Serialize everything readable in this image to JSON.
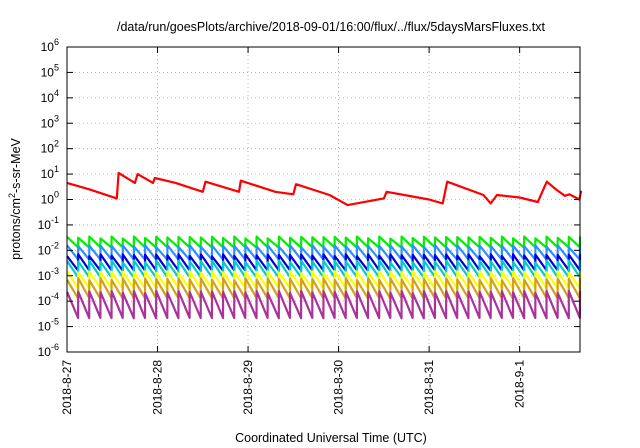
{
  "chart_data": {
    "type": "line",
    "title": "/data/run/goesPlots/archive/2018-09-01/16:00/flux/../flux/5daysMarsFluxes.txt",
    "xlabel": "Coordinated Universal Time (UTC)",
    "ylabel": {
      "base": "protons/cm",
      "sup": "2",
      "rest": "-s-sr-MeV"
    },
    "y_scale": "log",
    "ylim": [
      1e-06,
      1000000.0
    ],
    "xlim": [
      "2018-08-27",
      "2018-09-01T16:00"
    ],
    "x_ticks": [
      "2018-8-27",
      "2018-8-28",
      "2018-8-29",
      "2018-8-30",
      "2018-8-31",
      "2018-9-1"
    ],
    "y_ticks": [
      {
        "base": "10",
        "exp": "6"
      },
      {
        "base": "10",
        "exp": "5"
      },
      {
        "base": "10",
        "exp": "4"
      },
      {
        "base": "10",
        "exp": "3"
      },
      {
        "base": "10",
        "exp": "2"
      },
      {
        "base": "10",
        "exp": "1"
      },
      {
        "base": "10",
        "exp": "0"
      },
      {
        "base": "10",
        "exp": "-1"
      },
      {
        "base": "10",
        "exp": "-2"
      },
      {
        "base": "10",
        "exp": "-3"
      },
      {
        "base": "10",
        "exp": "-4"
      },
      {
        "base": "10",
        "exp": "-5"
      },
      {
        "base": "10",
        "exp": "-6"
      }
    ],
    "grid": true,
    "series": [
      {
        "color": "#ff0000",
        "x": [
          0,
          0.25,
          0.55,
          0.57,
          0.75,
          0.78,
          0.95,
          0.97,
          1.2,
          1.5,
          1.53,
          1.9,
          1.92,
          2.3,
          2.5,
          2.53,
          2.9,
          3.1,
          3.5,
          3.53,
          4.0,
          4.15,
          4.2,
          4.6,
          4.68,
          4.75,
          5.0,
          5.2,
          5.3,
          5.4,
          5.5,
          5.55,
          5.66,
          5.68
        ],
        "y": [
          4.5,
          2.5,
          1.1,
          11,
          4.5,
          10,
          4.5,
          7,
          4.5,
          2,
          5,
          2,
          5.5,
          2,
          1.6,
          4,
          1.5,
          0.6,
          1.1,
          2,
          1,
          0.7,
          5,
          1.5,
          0.7,
          1.5,
          1.2,
          0.8,
          5,
          2.5,
          1.4,
          1.6,
          1,
          2.2
        ]
      },
      {
        "color": "#00ee00",
        "sawtooth": {
          "low": 0.012,
          "high": 0.035
        }
      },
      {
        "color": "#2f8fff",
        "sawtooth": {
          "low": 0.004,
          "high": 0.016
        }
      },
      {
        "color": "#0000dd",
        "sawtooth": {
          "low": 0.0015,
          "high": 0.007
        }
      },
      {
        "color": "#00cccc",
        "sawtooth": {
          "low": 0.0008,
          "high": 0.004
        }
      },
      {
        "color": "#ffff00",
        "sawtooth": {
          "low": 0.0003,
          "high": 0.0015
        }
      },
      {
        "color": "#d4a017",
        "sawtooth": {
          "low": 0.00012,
          "high": 0.0008
        }
      },
      {
        "color": "#aa3399",
        "sawtooth": {
          "low": 2e-05,
          "high": 0.00025
        }
      }
    ]
  }
}
